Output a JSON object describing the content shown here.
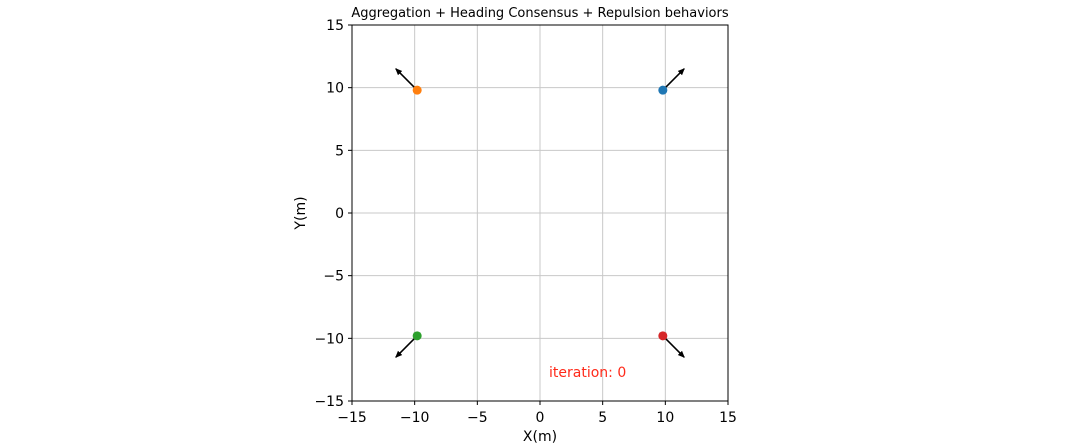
{
  "chart_data": {
    "type": "scatter",
    "title": "Aggregation + Heading Consensus + Repulsion behaviors",
    "xlabel": "X(m)",
    "ylabel": "Y(m)",
    "xlim": [
      -15,
      15
    ],
    "ylim": [
      -15,
      15
    ],
    "xticks": [
      -15,
      -10,
      -5,
      0,
      5,
      10,
      15
    ],
    "yticks": [
      -15,
      -10,
      -5,
      0,
      5,
      10,
      15
    ],
    "xtick_labels": [
      "−15",
      "−10",
      "−5",
      "0",
      "5",
      "10",
      "15"
    ],
    "ytick_labels": [
      "−15",
      "−10",
      "−5",
      "0",
      "5",
      "10",
      "15"
    ],
    "grid": true,
    "points": [
      {
        "x": 9.8,
        "y": 9.8,
        "color": "#1f77b4",
        "heading": {
          "dx": 1.7,
          "dy": 1.7
        }
      },
      {
        "x": -9.8,
        "y": 9.8,
        "color": "#ff7f0e",
        "heading": {
          "dx": -1.7,
          "dy": 1.7
        }
      },
      {
        "x": -9.8,
        "y": -9.8,
        "color": "#2ca02c",
        "heading": {
          "dx": -1.7,
          "dy": -1.7
        }
      },
      {
        "x": 9.8,
        "y": -9.8,
        "color": "#d62728",
        "heading": {
          "dx": 1.7,
          "dy": -1.7
        }
      }
    ],
    "annotation": {
      "text": "iteration: 0",
      "x": 3.8,
      "y": -12.7,
      "color": "#ff2a1a"
    }
  }
}
